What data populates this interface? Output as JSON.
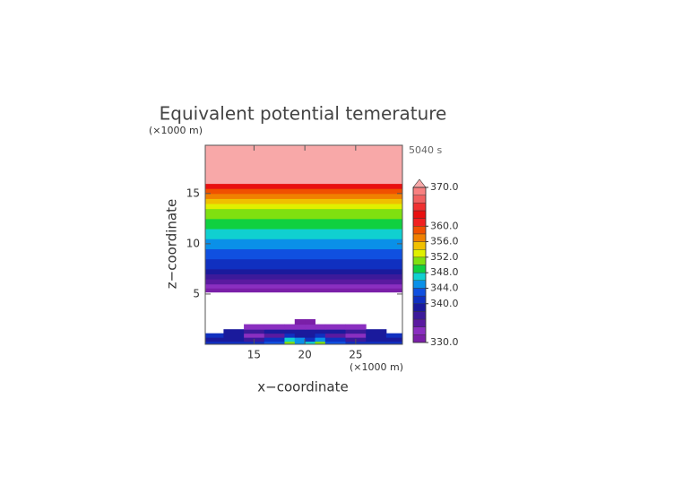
{
  "chart_data": {
    "type": "contour",
    "title": "Equivalent potential temerature",
    "time_label": "5040 s",
    "x_label": "x−coordinate",
    "y_label": "z−coordinate",
    "x_unit": "(×1000 m)",
    "y_unit": "(×1000 m)",
    "xlim": [
      10.2,
      29.6
    ],
    "ylim": [
      0,
      19.8
    ],
    "xticks": [
      15,
      20,
      25
    ],
    "yticks": [
      5,
      10,
      15
    ],
    "profile": {
      "z": [
        5.2,
        5.6,
        6.0,
        6.5,
        7.0,
        7.5,
        8,
        8.5,
        9,
        9.5,
        10,
        10.5,
        11,
        11.5,
        12,
        12.5,
        13,
        13.5,
        14,
        14.5,
        15,
        15.5,
        16,
        19.8
      ],
      "values": [
        331,
        333,
        335,
        337,
        339,
        340.5,
        341.5,
        342.5,
        343.5,
        344.5,
        345.5,
        346.5,
        347.5,
        348.5,
        349.5,
        350.5,
        351.5,
        353,
        355,
        357,
        359,
        362,
        372
      ]
    },
    "lower_field": {
      "x": [
        10.2,
        12,
        14,
        16,
        18,
        19,
        20,
        21,
        22,
        24,
        26,
        28,
        29.6
      ],
      "z": [
        0,
        0.3,
        0.7,
        1.1,
        1.5,
        2.0,
        2.5
      ],
      "values": [
        [
          341,
          341,
          341,
          343,
          350,
          344,
          346,
          350,
          343,
          341,
          341,
          341
        ],
        [
          339,
          339,
          337,
          341,
          346,
          345,
          341,
          345,
          341,
          337,
          339,
          339
        ],
        [
          341,
          339,
          333,
          335,
          341,
          339,
          339,
          341,
          335,
          333,
          339,
          341
        ],
        [
          null,
          339,
          337,
          339,
          339,
          339,
          339,
          339,
          339,
          337,
          339,
          null
        ],
        [
          null,
          null,
          333,
          333,
          333,
          333,
          333,
          333,
          333,
          333,
          null,
          null
        ],
        [
          null,
          null,
          null,
          null,
          null,
          331,
          331,
          null,
          null,
          null,
          null,
          null
        ]
      ]
    },
    "levels": [
      330,
      332,
      334,
      336,
      338,
      340,
      342,
      344,
      346,
      348,
      350,
      352,
      354,
      356,
      358,
      360,
      362,
      364,
      366,
      368,
      370
    ],
    "colors": [
      "#7a1fa8",
      "#8a2fc0",
      "#5a1aa0",
      "#3c1a9a",
      "#1a1a9c",
      "#1030c0",
      "#1050e0",
      "#0a90e8",
      "#10d0d0",
      "#10d040",
      "#80e010",
      "#e0f000",
      "#f0c000",
      "#f08000",
      "#f05000",
      "#f02020",
      "#e81010",
      "#f03030",
      "#f06060",
      "#f88080"
    ],
    "over_color": "#f8a8a8",
    "colorbar_lim": [
      330,
      370
    ],
    "colorbar_ticks": [
      {
        "value": 330,
        "label": "330.0"
      },
      {
        "value": 340,
        "label": "340.0"
      },
      {
        "value": 344,
        "label": "344.0"
      },
      {
        "value": 348,
        "label": "348.0"
      },
      {
        "value": 352,
        "label": "352.0"
      },
      {
        "value": 356,
        "label": "356.0"
      },
      {
        "value": 360,
        "label": "360.0"
      },
      {
        "value": 370,
        "label": "370.0"
      }
    ]
  }
}
